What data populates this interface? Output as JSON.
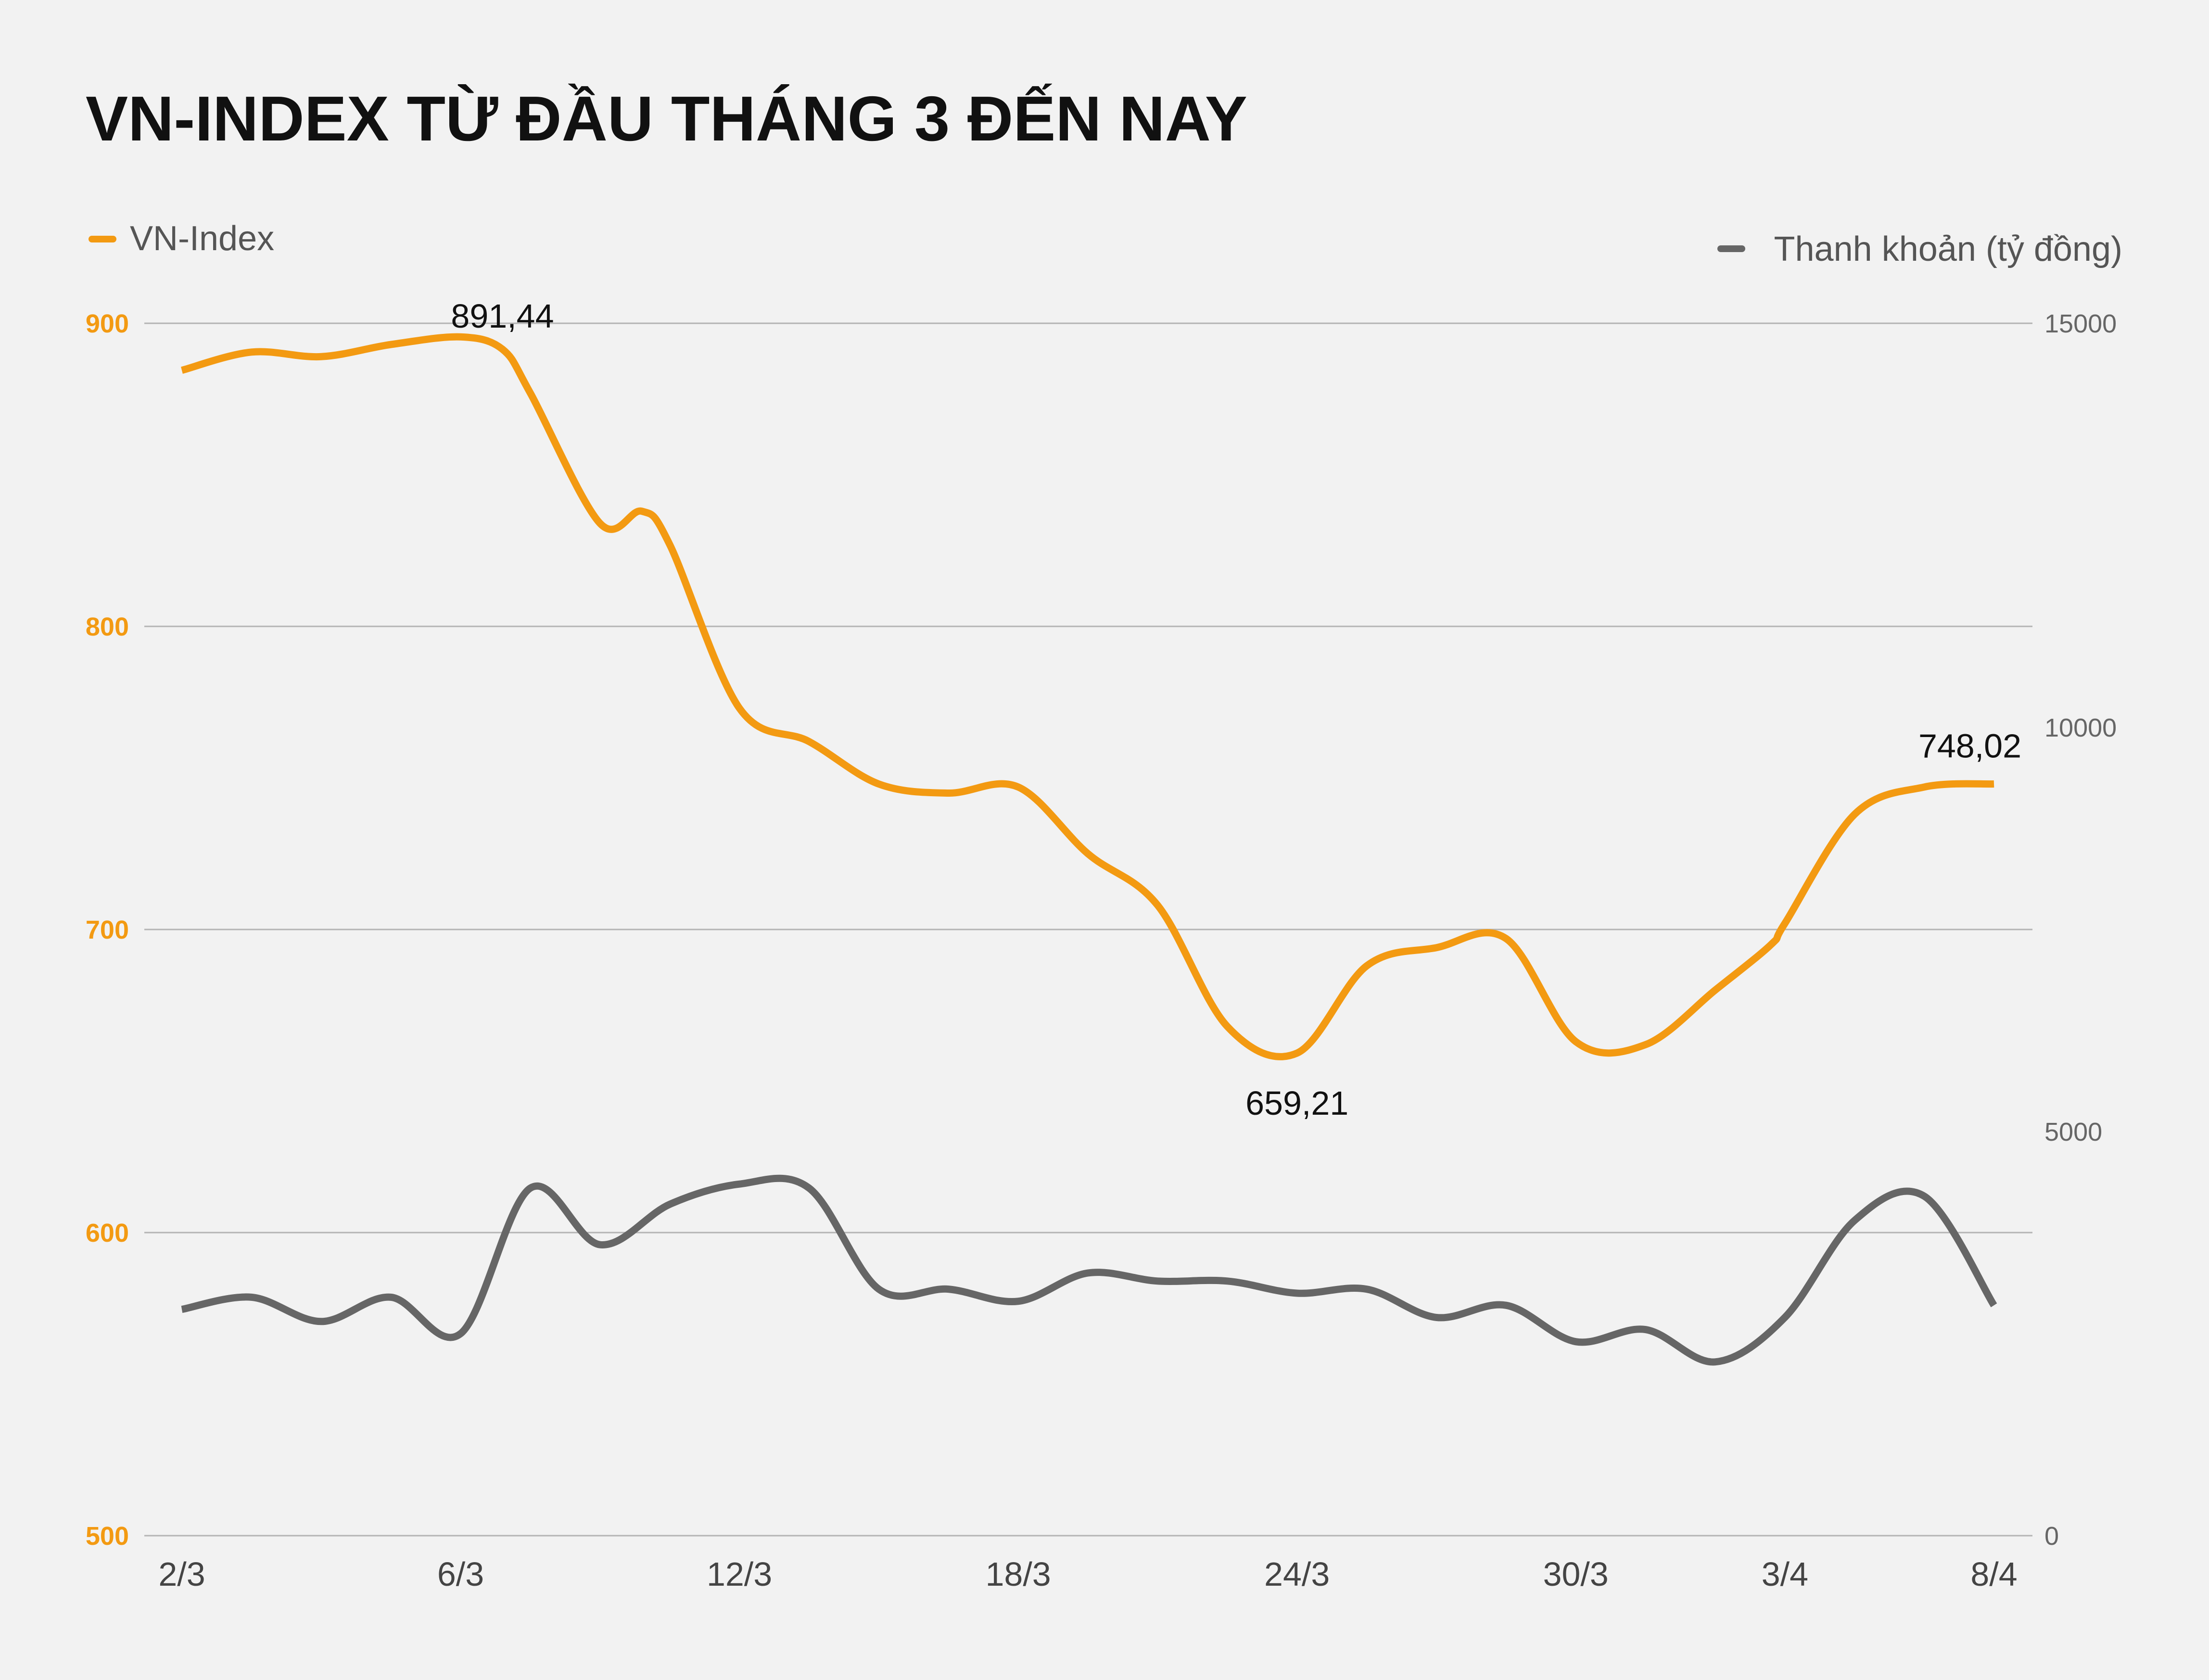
{
  "chart_data": {
    "type": "line",
    "title": "VN-INDEX TỪ ĐẦU THÁNG 3 ĐẾN NAY",
    "colors": {
      "vnindex": "#f39a12",
      "liquidity": "#666666",
      "grid": "#b4b4b4",
      "background": "#f2f2f2"
    },
    "x_tick_labels": [
      "2/3",
      "6/3",
      "12/3",
      "18/3",
      "24/3",
      "30/3",
      "3/4",
      "8/4"
    ],
    "x_tick_positions": [
      0,
      4,
      8,
      12,
      16,
      20,
      23,
      26
    ],
    "left_axis": {
      "ylim": [
        500,
        900
      ],
      "ticks": [
        500,
        600,
        700,
        800,
        900
      ]
    },
    "right_axis": {
      "ylim": [
        0,
        15000
      ],
      "ticks": [
        0,
        5000,
        10000,
        15000
      ]
    },
    "series": [
      {
        "name": "VN-Index",
        "axis": "left",
        "x": [
          0,
          1,
          2,
          3,
          4,
          4.6,
          5,
          6,
          6.6,
          7,
          8,
          9,
          10,
          11,
          12,
          13,
          14,
          15,
          16,
          17,
          18,
          19,
          20,
          21,
          22,
          22.8,
          23,
          24,
          25,
          26
        ],
        "values": [
          884.5,
          890.5,
          889,
          893,
          895.5,
          891.44,
          877,
          834,
          838,
          827,
          773,
          762,
          748,
          745,
          747,
          725,
          708,
          668,
          659.21,
          688,
          694,
          697,
          663,
          662,
          680,
          695,
          702,
          738,
          747,
          748.02
        ]
      },
      {
        "name": "Thanh khoản (tỷ đồng)",
        "axis": "right",
        "x": [
          0,
          1,
          2,
          3,
          4,
          5,
          6,
          7,
          8,
          9,
          10,
          11,
          12,
          13,
          14,
          15,
          16,
          17,
          18,
          19,
          20,
          21,
          22,
          23,
          24,
          25,
          26
        ],
        "values": [
          2800,
          2950,
          2650,
          2950,
          2500,
          4300,
          3600,
          4100,
          4350,
          4300,
          3050,
          3050,
          2900,
          3250,
          3150,
          3150,
          3000,
          3050,
          2700,
          2850,
          2400,
          2550,
          2150,
          2700,
          3900,
          4200,
          2850
        ]
      }
    ],
    "annotations": [
      {
        "label": "891,44",
        "x": 4.6,
        "value": 891.44
      },
      {
        "label": "659,21",
        "x": 16,
        "value": 659.21
      },
      {
        "label": "748,02",
        "x": 26,
        "value": 748.02
      }
    ],
    "legend": [
      {
        "label": "VN-Index",
        "position": "top-left"
      },
      {
        "label": "Thanh khoản (tỷ đồng)",
        "position": "top-right"
      }
    ]
  }
}
